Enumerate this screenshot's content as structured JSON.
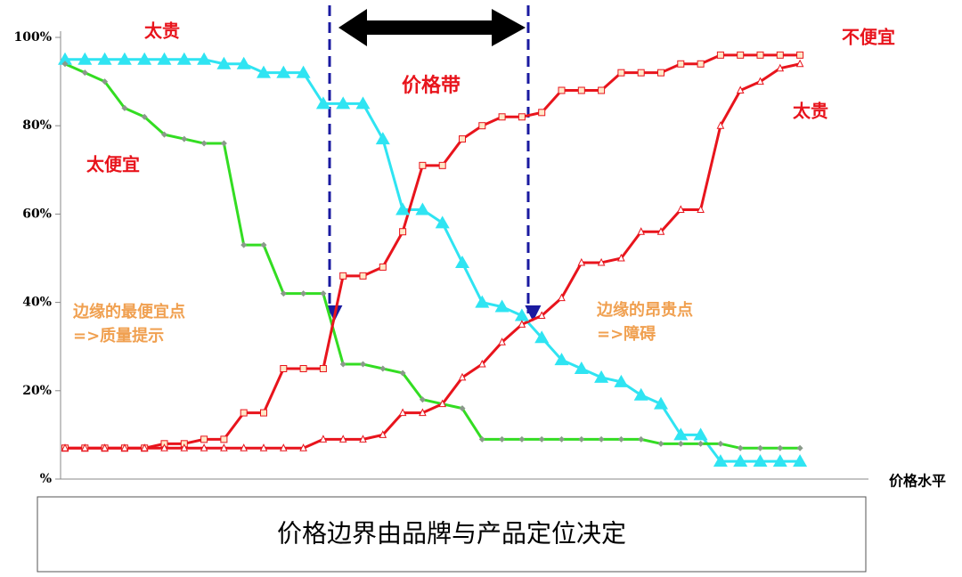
{
  "chart_data": {
    "type": "line",
    "categories": [
      null,
      null,
      null,
      null,
      null,
      null,
      null,
      null,
      null,
      null,
      null,
      null,
      null,
      null,
      null,
      null,
      null,
      null,
      null,
      null,
      null,
      null,
      null,
      null,
      null,
      null,
      null,
      null,
      null,
      null,
      null,
      null,
      null,
      null,
      null,
      null,
      null,
      null
    ],
    "series": [
      {
        "color": "#2fe4f2",
        "marker": "triangle-filled",
        "values": [
          95,
          95,
          95,
          95,
          95,
          95,
          95,
          95,
          94,
          94,
          92,
          92,
          92,
          85,
          85,
          85,
          77,
          61,
          61,
          58,
          49,
          40,
          39,
          37,
          32,
          27,
          25,
          23,
          22,
          19,
          17,
          10,
          10,
          4,
          4,
          4,
          4,
          4
        ]
      },
      {
        "color": "#33dd22",
        "marker": "diamond",
        "values": [
          94,
          92,
          90,
          84,
          82,
          78,
          77,
          76,
          76,
          53,
          53,
          42,
          42,
          42,
          26,
          26,
          25,
          24,
          18,
          17,
          16,
          9,
          9,
          9,
          9,
          9,
          9,
          9,
          9,
          9,
          8,
          8,
          8,
          8,
          7,
          7,
          7,
          7
        ]
      },
      {
        "color": "#e8141c",
        "marker": "square",
        "values": [
          7,
          7,
          7,
          7,
          7,
          8,
          8,
          9,
          9,
          15,
          15,
          25,
          25,
          25,
          46,
          46,
          48,
          56,
          71,
          71,
          77,
          80,
          82,
          82,
          83,
          88,
          88,
          88,
          92,
          92,
          92,
          94,
          94,
          96,
          96,
          96,
          96,
          96
        ]
      },
      {
        "color": "#e8141c",
        "marker": "triangle",
        "values": [
          7,
          7,
          7,
          7,
          7,
          7,
          7,
          7,
          7,
          7,
          7,
          7,
          7,
          9,
          9,
          9,
          10,
          15,
          15,
          17,
          23,
          26,
          31,
          35,
          37,
          41,
          49,
          49,
          50,
          56,
          56,
          61,
          61,
          80,
          88,
          90,
          93,
          94
        ]
      }
    ],
    "ylim": [
      0,
      100
    ],
    "yticks": [
      {
        "value": 0,
        "label": "%"
      },
      {
        "value": 20,
        "label": "20%"
      },
      {
        "value": 40,
        "label": "40%"
      },
      {
        "value": 60,
        "label": "60%"
      },
      {
        "value": 80,
        "label": "80%"
      },
      {
        "value": 100,
        "label": "100%"
      }
    ],
    "x_label": "价格水平",
    "annotations": [
      {
        "text": "太贵",
        "color": "#e8141c"
      },
      {
        "text": "不便宜",
        "color": "#e8141c"
      },
      {
        "text": "太贵",
        "color": "#e8141c"
      },
      {
        "text": "太便宜",
        "color": "#e8141c"
      },
      {
        "text": "价格带",
        "color": "#e8141c"
      },
      {
        "text": "边缘的最便宜点",
        "color": "#f0a050"
      },
      {
        "text": "=>质量提示",
        "color": "#f0a050"
      },
      {
        "text": "边缘的昂贵点",
        "color": "#f0a050"
      },
      {
        "text": "=>障碍",
        "color": "#f0a050"
      }
    ],
    "caption": "价格边界由品牌与产品定位决定"
  }
}
